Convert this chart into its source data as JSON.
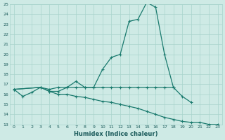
{
  "xlabel": "Humidex (Indice chaleur)",
  "x": [
    0,
    1,
    2,
    3,
    4,
    5,
    6,
    7,
    8,
    9,
    10,
    11,
    12,
    13,
    14,
    15,
    16,
    17,
    18,
    19,
    20,
    21,
    22,
    23
  ],
  "line1": [
    16.5,
    15.8,
    16.2,
    16.7,
    16.5,
    16.7,
    16.7,
    17.3,
    16.7,
    16.7,
    18.5,
    19.7,
    20.0,
    23.3,
    23.5,
    25.2,
    24.7,
    20.0,
    16.7,
    null,
    null,
    null,
    null,
    null
  ],
  "line2": [
    16.5,
    null,
    null,
    16.7,
    16.3,
    16.3,
    16.7,
    16.7,
    16.7,
    16.7,
    16.7,
    16.7,
    16.7,
    16.7,
    16.7,
    16.7,
    16.7,
    16.7,
    16.7,
    15.8,
    15.2,
    null,
    null,
    null
  ],
  "line3": [
    16.5,
    null,
    null,
    16.7,
    16.3,
    16.0,
    16.0,
    15.8,
    15.7,
    15.5,
    15.3,
    15.2,
    15.0,
    14.8,
    14.6,
    14.3,
    14.0,
    13.7,
    13.5,
    13.3,
    13.2,
    13.2,
    13.0,
    13.0
  ],
  "ylim": [
    13,
    25
  ],
  "xlim": [
    -0.5,
    23.5
  ],
  "yticks": [
    13,
    14,
    15,
    16,
    17,
    18,
    19,
    20,
    21,
    22,
    23,
    24,
    25
  ],
  "xticks": [
    0,
    1,
    2,
    3,
    4,
    5,
    6,
    7,
    8,
    9,
    10,
    11,
    12,
    13,
    14,
    15,
    16,
    17,
    18,
    19,
    20,
    21,
    22,
    23
  ],
  "line_color": "#1a7a6e",
  "bg_color": "#ceeae5",
  "grid_color": "#a8d4cc",
  "tick_color": "#1a5a5a",
  "xlabel_color": "#1a5a5a",
  "marker_size": 2.5,
  "line_width": 0.9,
  "xlabel_fontsize": 6,
  "tick_fontsize": 4.5
}
